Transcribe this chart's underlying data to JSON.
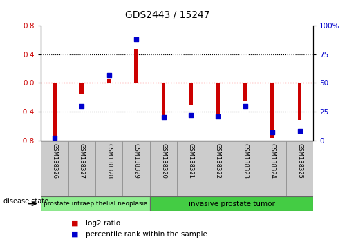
{
  "title": "GDS2443 / 15247",
  "samples": [
    "GSM138326",
    "GSM138327",
    "GSM138328",
    "GSM138329",
    "GSM138320",
    "GSM138321",
    "GSM138322",
    "GSM138323",
    "GSM138324",
    "GSM138325"
  ],
  "log2_ratio": [
    -0.77,
    -0.15,
    0.05,
    0.47,
    -0.52,
    -0.3,
    -0.45,
    -0.25,
    -0.77,
    -0.52
  ],
  "percentile_rank": [
    2,
    30,
    57,
    88,
    20,
    22,
    21,
    30,
    7,
    8
  ],
  "ylim": [
    -0.8,
    0.8
  ],
  "yticks_left": [
    -0.8,
    -0.4,
    0.0,
    0.4,
    0.8
  ],
  "yticks_right": [
    0,
    25,
    50,
    75,
    100
  ],
  "bar_color": "#CC0000",
  "dot_color": "#0000CC",
  "grid_color": "#000000",
  "zero_line_color": "#FF6666",
  "group1_label": "prostate intraepithelial neoplasia",
  "group2_label": "invasive prostate tumor",
  "group1_count": 4,
  "group2_count": 6,
  "group1_color": "#90EE90",
  "group2_color": "#44CC44",
  "disease_state_label": "disease state",
  "legend1": "log2 ratio",
  "legend2": "percentile rank within the sample",
  "bar_width": 0.15,
  "dot_size": 25
}
